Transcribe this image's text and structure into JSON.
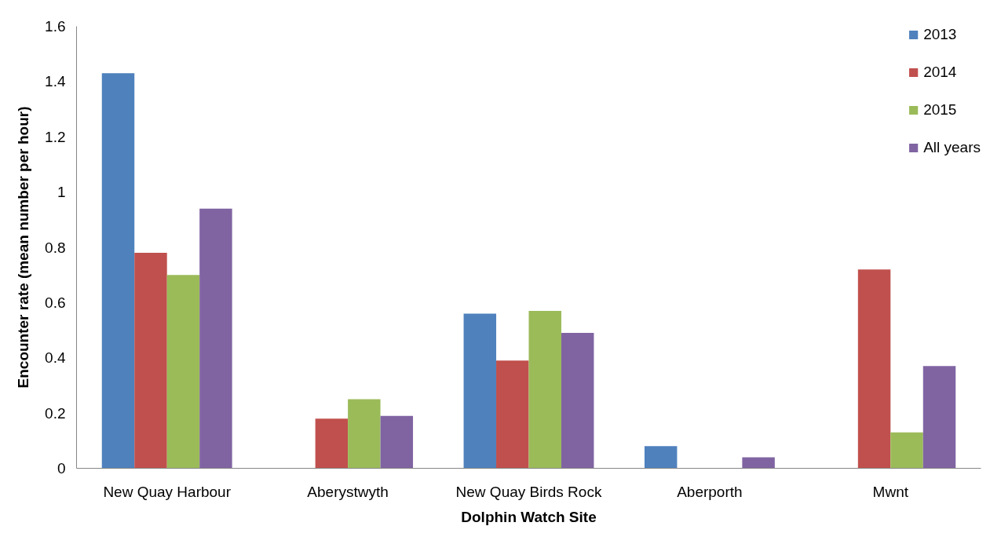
{
  "chart_data": {
    "type": "bar",
    "xlabel": "Dolphin Watch Site",
    "ylabel": "Encounter rate (mean number per hour)",
    "categories": [
      "New Quay Harbour",
      "Aberystwyth",
      "New Quay Birds Rock",
      "Aberporth",
      "Mwnt"
    ],
    "series": [
      {
        "name": "2013",
        "color": "#4f81bd",
        "values": [
          1.43,
          null,
          0.56,
          0.08,
          null
        ]
      },
      {
        "name": "2014",
        "color": "#c0504d",
        "values": [
          0.78,
          0.18,
          0.39,
          null,
          0.72
        ]
      },
      {
        "name": "2015",
        "color": "#9bbb59",
        "values": [
          0.7,
          0.25,
          0.57,
          null,
          0.13
        ]
      },
      {
        "name": "All years",
        "color": "#8064a2",
        "values": [
          0.94,
          0.19,
          0.49,
          0.04,
          0.37
        ]
      }
    ],
    "ylim": [
      0,
      1.6
    ],
    "yticks": [
      0,
      0.2,
      0.4,
      0.6,
      0.8,
      1,
      1.2,
      1.4,
      1.6
    ],
    "grid": false,
    "legend": "top right"
  }
}
